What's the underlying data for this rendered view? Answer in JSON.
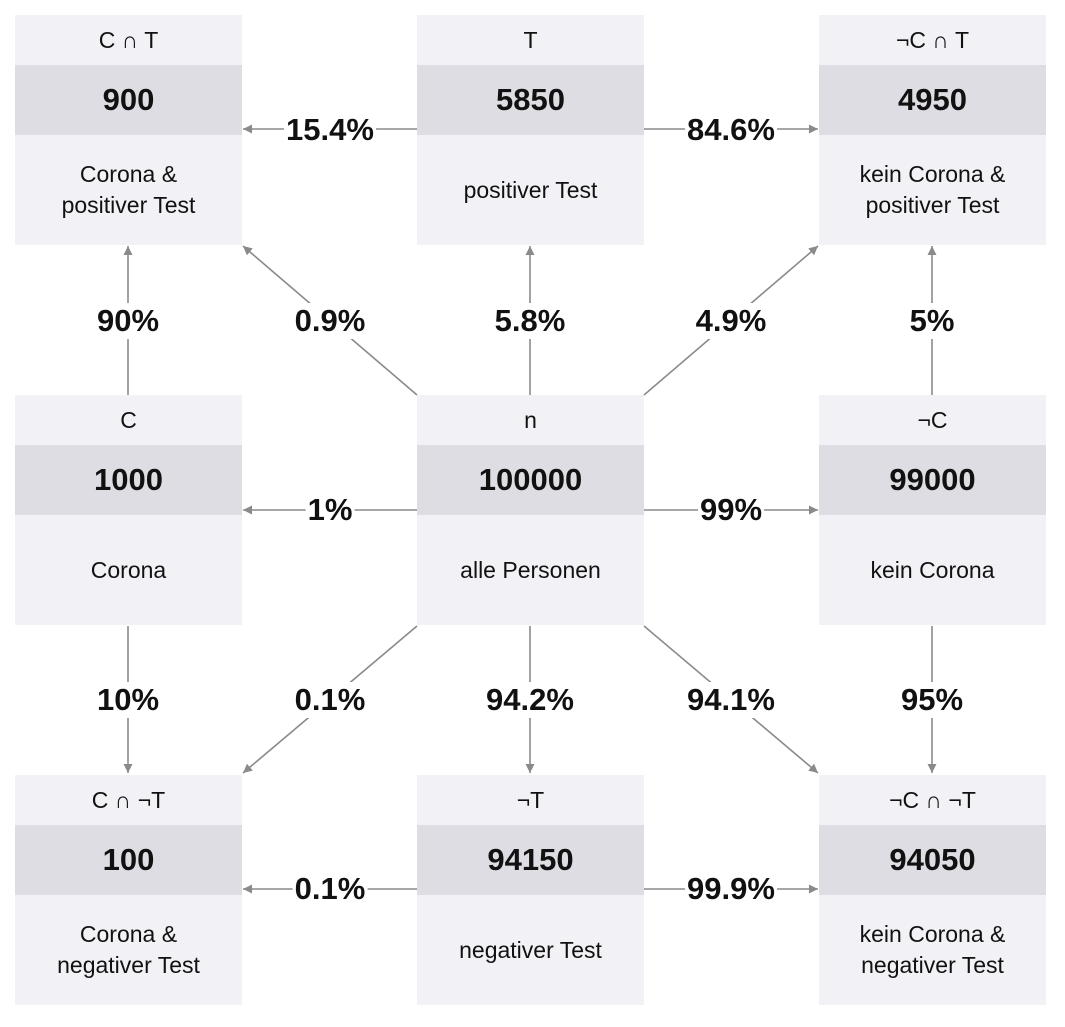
{
  "nodes": {
    "c_and_t": {
      "symbol": "C ∩ T",
      "value": "900",
      "label": "Corona &\npositiver Test"
    },
    "t": {
      "symbol": "T",
      "value": "5850",
      "label": "positiver Test"
    },
    "notc_and_t": {
      "symbol": "¬C ∩ T",
      "value": "4950",
      "label": "kein Corona &\npositiver Test"
    },
    "c": {
      "symbol": "C",
      "value": "1000",
      "label": "Corona"
    },
    "n": {
      "symbol": "n",
      "value": "100000",
      "label": "alle Personen"
    },
    "notc": {
      "symbol": "¬C",
      "value": "99000",
      "label": "kein Corona"
    },
    "c_and_nott": {
      "symbol": "C ∩ ¬T",
      "value": "100",
      "label": "Corona &\nnegativer Test"
    },
    "nott": {
      "symbol": "¬T",
      "value": "94150",
      "label": "negativer Test"
    },
    "notc_and_nott": {
      "symbol": "¬C ∩ ¬T",
      "value": "94050",
      "label": "kein Corona &\nnegativer Test"
    }
  },
  "edges": {
    "t_to_c_and_t": "15.4%",
    "t_to_notc_and_t": "84.6%",
    "c_to_c_and_t": "90%",
    "n_to_c_and_t": "0.9%",
    "n_to_t": "5.8%",
    "n_to_notc_and_t": "4.9%",
    "notc_to_notc_and_t": "5%",
    "n_to_c": "1%",
    "n_to_notc": "99%",
    "c_to_c_and_nott": "10%",
    "n_to_c_and_nott": "0.1%",
    "n_to_nott": "94.2%",
    "n_to_notc_and_nott": "94.1%",
    "notc_to_notc_and_nott": "95%",
    "nott_to_c_and_nott": "0.1%",
    "nott_to_notc_and_nott": "99.9%"
  },
  "colors": {
    "node_bg": "#f2f2f6",
    "value_bg": "#dedde3",
    "arrow": "#8a8a8a"
  }
}
